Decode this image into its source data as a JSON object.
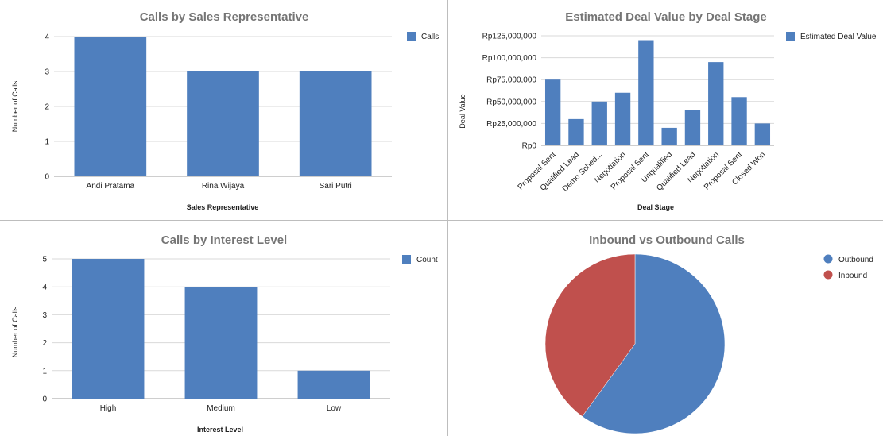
{
  "colors": {
    "blue": "#4f7fbe",
    "red": "#c0504d",
    "grid": "#d9d9d9",
    "axis": "#9e9e9e"
  },
  "chart_data": [
    {
      "type": "bar",
      "title": "Calls by Sales Representative",
      "xlabel": "Sales Representative",
      "ylabel": "Number of Calls",
      "categories": [
        "Andi Pratama",
        "Rina Wijaya",
        "Sari Putri"
      ],
      "series": [
        {
          "name": "Calls",
          "values": [
            4,
            3,
            3
          ]
        }
      ],
      "ylim": [
        0,
        4
      ],
      "yticks": [
        0,
        1,
        2,
        3,
        4
      ],
      "ytick_labels": [
        "0",
        "1",
        "2",
        "3",
        "4"
      ],
      "legend": "right",
      "grid": true
    },
    {
      "type": "bar",
      "title": "Estimated Deal Value by Deal Stage",
      "xlabel": "Deal Stage",
      "ylabel": "Deal Value",
      "categories": [
        "Proposal Sent",
        "Qualified Lead",
        "Demo Sched...",
        "Negotiation",
        "Proposal Sent",
        "Unqualified",
        "Qualified Lead",
        "Negotiation",
        "Proposal Sent",
        "Closed Won"
      ],
      "series": [
        {
          "name": "Estimated Deal Value",
          "values": [
            75000000,
            30000000,
            50000000,
            60000000,
            120000000,
            20000000,
            40000000,
            95000000,
            55000000,
            25000000
          ]
        }
      ],
      "ylim": [
        0,
        125000000
      ],
      "yticks": [
        0,
        25000000,
        50000000,
        75000000,
        100000000,
        125000000
      ],
      "ytick_labels": [
        "Rp0",
        "Rp25,000,000",
        "Rp50,000,000",
        "Rp75,000,000",
        "Rp100,000,000",
        "Rp125,000,000"
      ],
      "legend": "right",
      "grid": true
    },
    {
      "type": "bar",
      "title": "Calls by Interest Level",
      "xlabel": "Interest Level",
      "ylabel": "Number of Calls",
      "categories": [
        "High",
        "Medium",
        "Low"
      ],
      "series": [
        {
          "name": "Count",
          "values": [
            5,
            4,
            1
          ]
        }
      ],
      "ylim": [
        0,
        5
      ],
      "yticks": [
        0,
        1,
        2,
        3,
        4,
        5
      ],
      "ytick_labels": [
        "0",
        "1",
        "2",
        "3",
        "4",
        "5"
      ],
      "legend": "right",
      "grid": true
    },
    {
      "type": "pie",
      "title": "Inbound vs Outbound Calls",
      "labels": [
        "Outbound",
        "Inbound"
      ],
      "values": [
        6,
        4
      ],
      "legend": "right"
    }
  ]
}
